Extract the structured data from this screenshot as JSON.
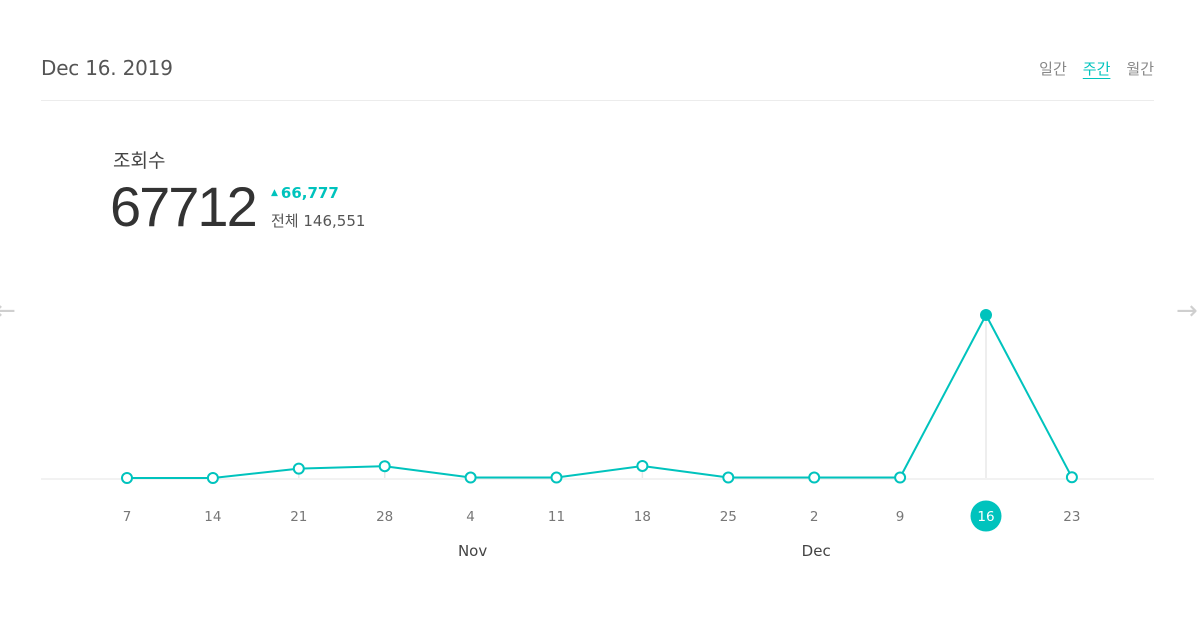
{
  "header": {
    "date": "Dec 16. 2019",
    "period_tabs": [
      {
        "label": "일간",
        "active": false
      },
      {
        "label": "주간",
        "active": true
      },
      {
        "label": "월간",
        "active": false
      }
    ]
  },
  "metric": {
    "label": "조회수",
    "value": "67712",
    "delta": "66,777",
    "total_label": "전체",
    "total_value": "146,551"
  },
  "nav": {
    "prev_icon": "arrow-left-icon",
    "next_icon": "arrow-right-icon"
  },
  "colors": {
    "accent": "#00c3bd",
    "baseline": "#e6e6e6",
    "tick_text": "#777777",
    "month_text": "#444444"
  },
  "chart_data": {
    "type": "line",
    "x": [
      "7",
      "14",
      "21",
      "28",
      "4",
      "11",
      "18",
      "25",
      "2",
      "9",
      "16",
      "23"
    ],
    "month_labels": [
      {
        "label": "Nov",
        "at": "4"
      },
      {
        "label": "Dec",
        "at": "2"
      }
    ],
    "series": [
      {
        "values": [
          0,
          0,
          3900,
          4900,
          200,
          200,
          5000,
          200,
          200,
          200,
          67712,
          300
        ]
      }
    ],
    "selected": "16",
    "ylim": [
      0,
      67712
    ],
    "grid": false
  }
}
